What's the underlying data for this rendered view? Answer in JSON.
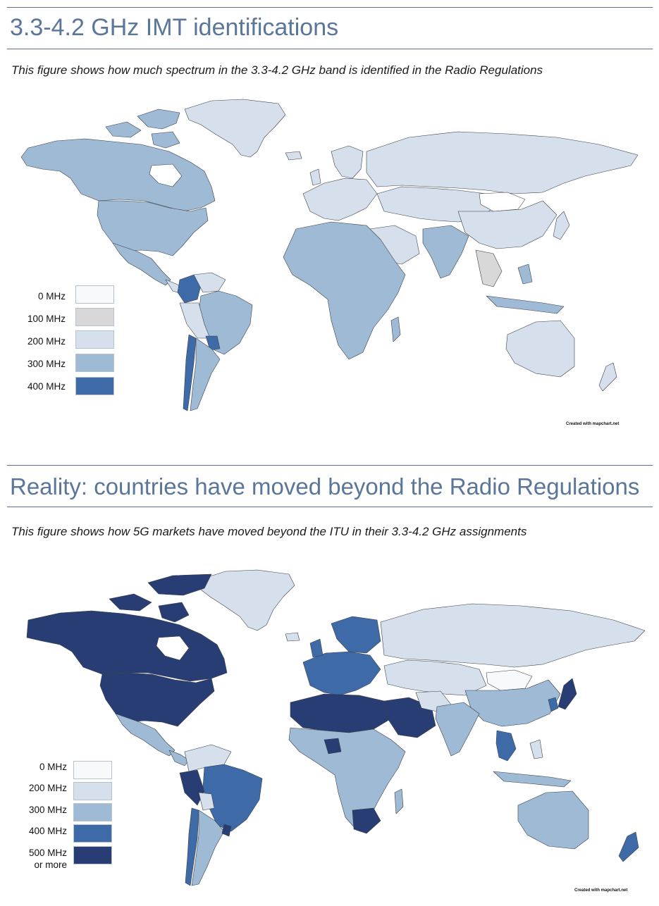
{
  "section1": {
    "title": "3.3-4.2 GHz IMT identifications",
    "subtitle": "This figure shows how much spectrum in the 3.3-4.2 GHz band is identified in the Radio Regulations",
    "credit": "Created with mapchart.net",
    "legend": [
      {
        "label": "0 MHz",
        "color": "#f7f9fb"
      },
      {
        "label": "100 MHz",
        "color": "#d8d8d8"
      },
      {
        "label": "200 MHz",
        "color": "#d5e0ec"
      },
      {
        "label": "300 MHz",
        "color": "#9fbad5"
      },
      {
        "label": "400 MHz",
        "color": "#3e6ba8"
      }
    ]
  },
  "section2": {
    "title": "Reality: countries have moved beyond the Radio Regulations",
    "subtitle": "This figure shows how 5G markets have moved beyond the ITU in their 3.3-4.2 GHz assignments",
    "credit": "Created with mapchart.net",
    "legend": [
      {
        "label": "0 MHz",
        "color": "#f7f9fb"
      },
      {
        "label": "200 MHz",
        "color": "#d5e0ec"
      },
      {
        "label": "300 MHz",
        "color": "#9fbad5"
      },
      {
        "label": "400 MHz",
        "color": "#3e6ba8"
      },
      {
        "label_line1": "500 MHz",
        "label_line2": "or more",
        "color": "#283d73"
      }
    ]
  },
  "colors": {
    "title": "#5a7698",
    "rule": "#56708e",
    "outline": "#3a3f48"
  }
}
